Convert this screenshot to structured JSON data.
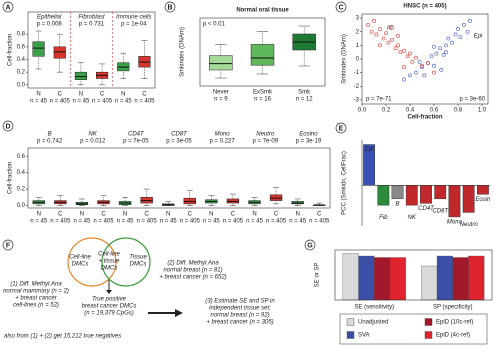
{
  "chart_data": [
    {
      "type": "box",
      "panel": "A",
      "ylabel": "Cell-fraction",
      "groups": [
        "Epithelial",
        "Fibroblast",
        "Immune cells"
      ],
      "group_colors": [
        "#3b4fb0",
        "#333333",
        "#e8401c"
      ],
      "pvalues": [
        "p = 0.008",
        "p = 0.731",
        "p = 1e-04"
      ],
      "separators": true,
      "categories": [
        "N",
        "C",
        "N",
        "C",
        "N",
        "C"
      ],
      "n_labels": [
        "n = 45",
        "n = 405",
        "n = 45",
        "n = 405",
        "n = 45",
        "n = 405"
      ],
      "colors": [
        "#3aa14a",
        "#d9342b",
        "#3aa14a",
        "#d9342b",
        "#3aa14a",
        "#d9342b"
      ],
      "boxes": [
        {
          "whislo": 0.25,
          "q1": 0.45,
          "med": 0.58,
          "q3": 0.68,
          "whishi": 0.85
        },
        {
          "whislo": 0.2,
          "q1": 0.42,
          "med": 0.52,
          "q3": 0.6,
          "whishi": 0.8
        },
        {
          "whislo": 0.0,
          "q1": 0.08,
          "med": 0.13,
          "q3": 0.2,
          "whishi": 0.35
        },
        {
          "whislo": 0.0,
          "q1": 0.1,
          "med": 0.15,
          "q3": 0.2,
          "whishi": 0.33
        },
        {
          "whislo": 0.1,
          "q1": 0.22,
          "med": 0.28,
          "q3": 0.35,
          "whishi": 0.5
        },
        {
          "whislo": 0.1,
          "q1": 0.28,
          "med": 0.36,
          "q3": 0.45,
          "whishi": 0.7
        }
      ],
      "ylim": [
        -0.05,
        1.15
      ],
      "yticks": [
        {
          "value": 0,
          "label": "0.0"
        },
        {
          "value": 0.2,
          "label": "0.2"
        },
        {
          "value": 0.4,
          "label": "0.4"
        },
        {
          "value": 0.6,
          "label": "0.6"
        },
        {
          "value": 0.8,
          "label": "0.8"
        }
      ]
    },
    {
      "type": "box",
      "panel": "B",
      "title": "Normal oral tissue",
      "ylabel": "Smkindex (DNAm)",
      "annotation": "p < 0.01",
      "categories": [
        "Never",
        "ExSmk",
        "Smk"
      ],
      "n_labels": [
        "n = 9",
        "n = 16",
        "n = 12"
      ],
      "colors": [
        "#a5d99a",
        "#5fb85a",
        "#1e7b34"
      ],
      "boxes": [
        {
          "whislo": 0.2,
          "q1": 0.3,
          "med": 0.38,
          "q3": 0.48,
          "whishi": 0.62
        },
        {
          "whislo": 0.25,
          "q1": 0.36,
          "med": 0.45,
          "q3": 0.62,
          "whishi": 0.78
        },
        {
          "whislo": 0.35,
          "q1": 0.55,
          "med": 0.65,
          "q3": 0.75,
          "whishi": 0.85
        }
      ],
      "ylim": [
        0.1,
        0.95
      ]
    },
    {
      "type": "scatter",
      "panel": "C",
      "title": "HNSC (n = 405)",
      "xlabel": "Cell-fraction",
      "ylabel": "Smkindex (DNAm)",
      "series": [
        {
          "name": "Epi",
          "color": "#3a56c8",
          "x": [
            0.35,
            0.4,
            0.45,
            0.5,
            0.52,
            0.55,
            0.58,
            0.6,
            0.62,
            0.65,
            0.68,
            0.7,
            0.72,
            0.75,
            0.78,
            0.8,
            0.82,
            0.85,
            0.88,
            0.9,
            0.48,
            0.6,
            0.7,
            0.66
          ],
          "values": [
            -1.5,
            -1.2,
            -1.0,
            -0.6,
            -1.2,
            -0.3,
            0.2,
            -0.5,
            0.4,
            0.8,
            0.3,
            1.0,
            1.5,
            1.2,
            1.8,
            2.2,
            1.6,
            2.5,
            2.0,
            2.8,
            -0.2,
            0.9,
            0.5,
            -0.8
          ]
        },
        {
          "name": "IC",
          "color": "#e0342b",
          "x": [
            0.05,
            0.08,
            0.1,
            0.12,
            0.15,
            0.18,
            0.2,
            0.22,
            0.25,
            0.28,
            0.3,
            0.32,
            0.35,
            0.38,
            0.4,
            0.42,
            0.45,
            0.5,
            0.55,
            0.6,
            0.25,
            0.3,
            0.15,
            0.35
          ],
          "values": [
            2.5,
            2.0,
            2.8,
            1.8,
            2.2,
            1.5,
            1.9,
            1.2,
            1.4,
            0.8,
            1.0,
            0.5,
            0.6,
            0.2,
            0.4,
            -0.2,
            0.1,
            -0.5,
            -0.3,
            -1.0,
            2.3,
            1.7,
            1.0,
            -0.6
          ]
        }
      ],
      "annotations": [
        {
          "text": "p = 7e-71",
          "color": "#3a56c8"
        },
        {
          "text": "p = 3e-60",
          "color": "#e0342b"
        }
      ],
      "xlim": [
        0,
        1.05
      ],
      "ylim": [
        -3.3,
        3.3
      ],
      "xticks": [
        {
          "value": 0,
          "label": "0.0"
        },
        {
          "value": 0.2,
          "label": "0.2"
        },
        {
          "value": 0.4,
          "label": "0.4"
        },
        {
          "value": 0.6,
          "label": "0.6"
        },
        {
          "value": 0.8,
          "label": "0.8"
        },
        {
          "value": 1,
          "label": "1.0"
        }
      ],
      "yticks": [
        -3,
        -2,
        -1,
        0,
        1,
        2,
        3
      ]
    },
    {
      "type": "box",
      "panel": "D",
      "ylabel": "Cell-fraction",
      "groups": [
        "B",
        "NK",
        "CD4T",
        "CD8T",
        "Mono",
        "Neutro",
        "Eosino"
      ],
      "group_colors": [
        "#444444",
        "#e8401c",
        "#e8401c",
        "#e8401c",
        "#e8401c",
        "#e8401c",
        "#e8401c"
      ],
      "pvalues": [
        "p = 0.742",
        "p = 0.012",
        "p = 7e-05",
        "p = 3e-05",
        "p = 0.227",
        "p = 7e-09",
        "p = 3e-19"
      ],
      "categories": [
        "N",
        "C",
        "N",
        "C",
        "N",
        "C",
        "N",
        "C",
        "N",
        "C",
        "N",
        "C",
        "N",
        "C"
      ],
      "n_labels": [
        "n = 45",
        "n = 405",
        "n = 45",
        "n = 405",
        "n = 45",
        "n = 405",
        "n = 45",
        "n = 405",
        "n = 45",
        "n = 405",
        "n = 45",
        "n = 405",
        "n = 45",
        "n = 405"
      ],
      "colors": [
        "#3aa14a",
        "#d9342b",
        "#3aa14a",
        "#d9342b",
        "#3aa14a",
        "#d9342b",
        "#3aa14a",
        "#d9342b",
        "#3aa14a",
        "#d9342b",
        "#3aa14a",
        "#d9342b",
        "#3aa14a",
        "#d9342b"
      ],
      "boxes": [
        {
          "whislo": 0,
          "q1": 0.02,
          "med": 0.04,
          "q3": 0.06,
          "whishi": 0.1
        },
        {
          "whislo": 0,
          "q1": 0.02,
          "med": 0.04,
          "q3": 0.06,
          "whishi": 0.12
        },
        {
          "whislo": 0,
          "q1": 0.01,
          "med": 0.02,
          "q3": 0.04,
          "whishi": 0.08
        },
        {
          "whislo": 0,
          "q1": 0.02,
          "med": 0.04,
          "q3": 0.06,
          "whishi": 0.12
        },
        {
          "whislo": 0,
          "q1": 0.01,
          "med": 0.03,
          "q3": 0.05,
          "whishi": 0.1
        },
        {
          "whislo": 0,
          "q1": 0.03,
          "med": 0.06,
          "q3": 0.1,
          "whishi": 0.2
        },
        {
          "whislo": 0,
          "q1": 0,
          "med": 0.01,
          "q3": 0.02,
          "whishi": 0.05
        },
        {
          "whislo": 0,
          "q1": 0.02,
          "med": 0.05,
          "q3": 0.09,
          "whishi": 0.18
        },
        {
          "whislo": 0,
          "q1": 0.03,
          "med": 0.05,
          "q3": 0.07,
          "whishi": 0.12
        },
        {
          "whislo": 0,
          "q1": 0.03,
          "med": 0.05,
          "q3": 0.08,
          "whishi": 0.14
        },
        {
          "whislo": 0,
          "q1": 0.02,
          "med": 0.04,
          "q3": 0.06,
          "whishi": 0.1
        },
        {
          "whislo": 0.02,
          "q1": 0.06,
          "med": 0.09,
          "q3": 0.13,
          "whishi": 0.22
        },
        {
          "whislo": 0,
          "q1": 0.02,
          "med": 0.03,
          "q3": 0.05,
          "whishi": 0.08
        },
        {
          "whislo": 0,
          "q1": 0,
          "med": 0.005,
          "q3": 0.01,
          "whishi": 0.03
        }
      ],
      "ylim": [
        -0.03,
        0.7
      ],
      "yticks": [
        {
          "value": 0,
          "label": "0.0"
        },
        {
          "value": 0.2,
          "label": "0.2"
        },
        {
          "value": 0.4,
          "label": "0.4"
        },
        {
          "value": 0.6,
          "label": "0.6"
        }
      ]
    },
    {
      "type": "bar",
      "panel": "E",
      "ylabel": "PCC (Smkidx, CellFrac)",
      "categories": [
        "Epi",
        "Fib",
        "B",
        "NK",
        "CD4T",
        "CD8T",
        "Mono",
        "Neutro",
        "Eosin"
      ],
      "values": [
        0.45,
        -0.22,
        -0.15,
        -0.22,
        -0.2,
        -0.15,
        -0.35,
        -0.3,
        -0.1
      ],
      "colors": [
        "#3b4fb0",
        "#2e8b3e",
        "#888888",
        "#c0282b",
        "#c0282b",
        "#c0282b",
        "#c0282b",
        "#c0282b",
        "#c0282b"
      ],
      "ylim": [
        -0.45,
        0.5
      ]
    },
    {
      "type": "grouped_bar",
      "panel": "G",
      "ylabel": "SE or SP",
      "categories": [
        "SE (sensitivity)",
        "SP (specificity)"
      ],
      "series": [
        {
          "name": "Unadjusted",
          "color": "#d9d9d9",
          "values": [
            0.93,
            0.68
          ]
        },
        {
          "name": "SVA",
          "color": "#3b4fa8",
          "values": [
            0.88,
            0.88
          ]
        },
        {
          "name": "EpiD (10c-ref)",
          "color": "#a3182b",
          "values": [
            0.85,
            0.85
          ]
        },
        {
          "name": "EpiD (4c-ref)",
          "color": "#e0242f",
          "values": [
            0.85,
            0.88
          ]
        }
      ],
      "ylim": [
        0,
        1
      ]
    }
  ],
  "diagram": {
    "panel": "F",
    "venn_left": [
      "Cell-line",
      "DMCs"
    ],
    "venn_center": [
      "Cell-line",
      "+ tissue",
      "DMCs"
    ],
    "venn_right": [
      "Tissue",
      "DMCs"
    ],
    "left_text": [
      "(1) Diff. Methyl.Ana",
      "normal mammary (n = 2)",
      "+ breast cancer",
      "cell-lines (n = 52)"
    ],
    "right_text": [
      "(2) Diff. Methyl.Ana",
      "normal breast (n = 81)",
      "+ breast cancer (n = 652)"
    ],
    "center_text": [
      "True positive",
      "breast cancer DMCs",
      "(n = 19,379 CpGs)"
    ],
    "bottom_text": "also from (1) + (2) get 15,212 true negatives",
    "estimate_text": [
      "(3) Estimate SE and SP in",
      "independent tissue set:",
      "normal breast (n = 92)",
      "+ breast cancer (n = 305)"
    ]
  }
}
